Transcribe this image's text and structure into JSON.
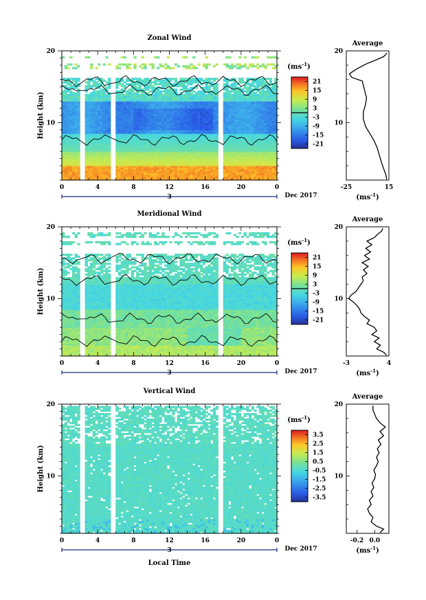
{
  "chart_data": [
    {
      "type": "heatmap",
      "title": "Zonal Wind",
      "ylabel": "Height (km)",
      "ylim": [
        2,
        20
      ],
      "xlim": [
        0,
        24
      ],
      "x_ticks": [
        "0",
        "4",
        "8",
        "12",
        "16",
        "20",
        "0"
      ],
      "y_ticks": [
        "20",
        "10"
      ],
      "date_marker": "3",
      "date_label": "Dec 2017",
      "colorbar": {
        "unit_base": "(ms",
        "unit_exp": "-1",
        "unit_end": ")",
        "ticks": [
          "21",
          "15",
          "9",
          "3",
          "-3",
          "-9",
          "-15",
          "-21"
        ],
        "range": [
          -24,
          24
        ]
      },
      "data_gaps_hours": [
        [
          2.0,
          2.5
        ],
        [
          5.4,
          6.0
        ],
        [
          17.4,
          17.9
        ]
      ],
      "profile": {
        "title": "Average",
        "x_ticks": [
          "-25",
          "15"
        ],
        "xlim": [
          -25,
          15
        ],
        "unit_base": "(ms",
        "unit_exp": "-1",
        "unit_end": ")",
        "points": [
          [
            13,
            2.1
          ],
          [
            12,
            2.8
          ],
          [
            10,
            3.6
          ],
          [
            8,
            4.5
          ],
          [
            6,
            5.5
          ],
          [
            4,
            6.5
          ],
          [
            1,
            7.5
          ],
          [
            -3,
            8.5
          ],
          [
            -7,
            9.5
          ],
          [
            -9,
            10.5
          ],
          [
            -9,
            11.5
          ],
          [
            -7,
            12.5
          ],
          [
            -6,
            13.5
          ],
          [
            -7,
            14
          ],
          [
            -8,
            14.6
          ],
          [
            -9,
            15.2
          ],
          [
            -10,
            15.8
          ],
          [
            -20,
            16.3
          ],
          [
            -22,
            16.8
          ],
          [
            -15,
            17.5
          ],
          [
            -6,
            18.2
          ],
          [
            4,
            18.8
          ],
          [
            10,
            19.2
          ],
          [
            12,
            19.5
          ],
          [
            13,
            19.7
          ]
        ]
      }
    },
    {
      "type": "heatmap",
      "title": "Meridional Wind",
      "ylabel": "Height (km)",
      "ylim": [
        2,
        20
      ],
      "xlim": [
        0,
        24
      ],
      "x_ticks": [
        "0",
        "4",
        "8",
        "12",
        "16",
        "20",
        "0"
      ],
      "y_ticks": [
        "20",
        "10"
      ],
      "date_marker": "3",
      "date_label": "Dec 2017",
      "colorbar": {
        "unit_base": "(ms",
        "unit_exp": "-1",
        "unit_end": ")",
        "ticks": [
          "21",
          "15",
          "9",
          "3",
          "-3",
          "-9",
          "-15",
          "-21"
        ],
        "range": [
          -24,
          24
        ]
      },
      "data_gaps_hours": [
        [
          2.0,
          2.5
        ],
        [
          5.4,
          6.0
        ],
        [
          17.4,
          17.9
        ]
      ],
      "profile": {
        "title": "Average",
        "x_ticks": [
          "-3",
          "4"
        ],
        "xlim": [
          -3,
          4
        ],
        "unit_base": "(ms",
        "unit_exp": "-1",
        "unit_end": ")",
        "points": [
          [
            3.6,
            2.1
          ],
          [
            3.2,
            2.5
          ],
          [
            2.0,
            3.0
          ],
          [
            2.6,
            3.5
          ],
          [
            1.6,
            4.0
          ],
          [
            2.4,
            4.5
          ],
          [
            1.2,
            5.0
          ],
          [
            2.0,
            5.5
          ],
          [
            1.6,
            6.0
          ],
          [
            0.4,
            6.5
          ],
          [
            0.8,
            7.0
          ],
          [
            0.0,
            7.5
          ],
          [
            -0.6,
            8.0
          ],
          [
            -0.8,
            8.5
          ],
          [
            -1.2,
            9.0
          ],
          [
            -1.8,
            9.5
          ],
          [
            -2.6,
            10.0
          ],
          [
            -2.2,
            10.5
          ],
          [
            -1.4,
            11.0
          ],
          [
            -1.0,
            11.5
          ],
          [
            -0.6,
            12.0
          ],
          [
            -0.2,
            12.5
          ],
          [
            -0.4,
            13.0
          ],
          [
            0.4,
            13.5
          ],
          [
            -0.2,
            14.0
          ],
          [
            0.6,
            14.5
          ],
          [
            -0.4,
            15.0
          ],
          [
            0.8,
            15.5
          ],
          [
            0.0,
            16.0
          ],
          [
            1.0,
            16.5
          ],
          [
            0.2,
            17.0
          ],
          [
            1.2,
            17.5
          ],
          [
            0.4,
            18.0
          ],
          [
            1.6,
            18.5
          ],
          [
            2.2,
            19.0
          ],
          [
            2.8,
            19.4
          ],
          [
            3.0,
            19.8
          ]
        ]
      }
    },
    {
      "type": "heatmap",
      "title": "Vertical Wind",
      "xlabel": "Local Time",
      "ylabel": "Height (km)",
      "ylim": [
        2,
        20
      ],
      "xlim": [
        0,
        24
      ],
      "x_ticks": [
        "0",
        "4",
        "8",
        "12",
        "16",
        "20",
        "0"
      ],
      "y_ticks": [
        "20",
        "10"
      ],
      "date_marker": "3",
      "date_label": "Dec 2017",
      "colorbar": {
        "unit_base": "(ms",
        "unit_exp": "-1",
        "unit_end": ")",
        "ticks": [
          "3.5",
          "2.5",
          "1.5",
          "0.5",
          "-0.5",
          "-1.5",
          "-2.5",
          "-3.5"
        ],
        "range": [
          -4,
          4
        ]
      },
      "data_gaps_hours": [
        [
          2.0,
          2.5
        ],
        [
          5.4,
          6.0
        ],
        [
          17.4,
          17.9
        ]
      ],
      "profile": {
        "title": "Average",
        "x_ticks": [
          "-0.2",
          "0.0"
        ],
        "xlim": [
          -0.32,
          0.16
        ],
        "unit_base": "(ms",
        "unit_exp": "-1",
        "unit_end": ")",
        "points": [
          [
            0.06,
            2.1
          ],
          [
            0.1,
            2.6
          ],
          [
            0.02,
            3.0
          ],
          [
            -0.04,
            3.6
          ],
          [
            -0.02,
            4.2
          ],
          [
            -0.06,
            4.8
          ],
          [
            -0.08,
            5.4
          ],
          [
            -0.04,
            6.0
          ],
          [
            -0.06,
            6.6
          ],
          [
            -0.02,
            7.2
          ],
          [
            -0.04,
            7.8
          ],
          [
            -0.01,
            8.4
          ],
          [
            -0.03,
            9.0
          ],
          [
            0.0,
            9.6
          ],
          [
            0.01,
            10.2
          ],
          [
            -0.01,
            10.8
          ],
          [
            0.02,
            11.4
          ],
          [
            0.04,
            12.0
          ],
          [
            0.02,
            12.6
          ],
          [
            0.05,
            13.2
          ],
          [
            0.03,
            13.8
          ],
          [
            0.07,
            14.4
          ],
          [
            0.04,
            15.0
          ],
          [
            0.1,
            15.6
          ],
          [
            0.06,
            16.2
          ],
          [
            0.12,
            16.8
          ],
          [
            0.06,
            17.4
          ],
          [
            0.02,
            18.0
          ],
          [
            0.0,
            18.6
          ],
          [
            -0.02,
            19.2
          ],
          [
            -0.02,
            19.8
          ]
        ]
      }
    }
  ]
}
